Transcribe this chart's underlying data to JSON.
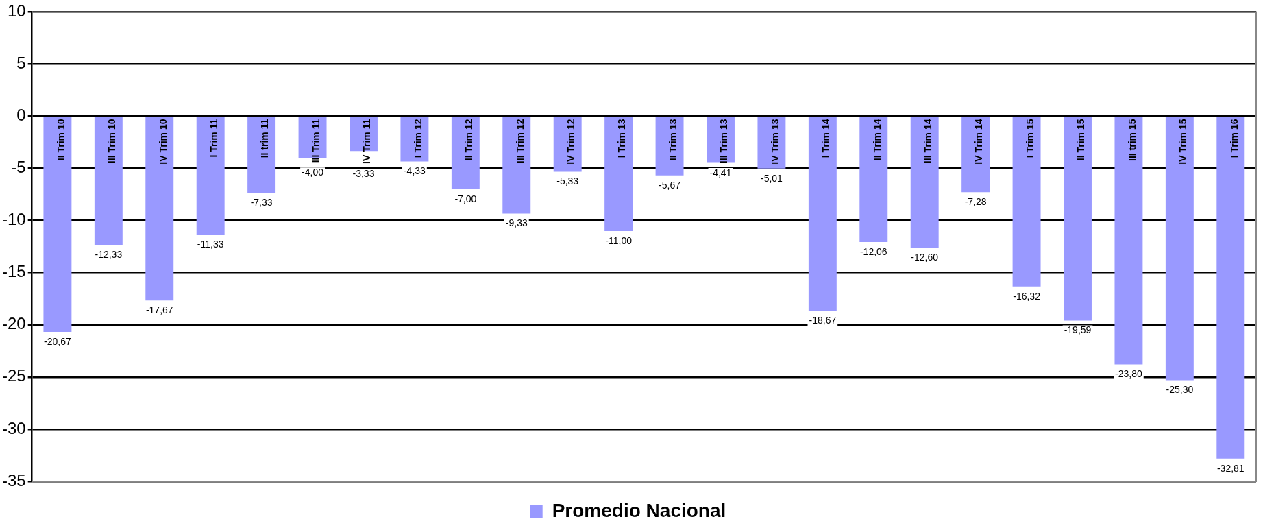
{
  "chart_data": {
    "type": "bar",
    "categories": [
      "II Trim 10",
      "III Trim 10",
      "IV Trim 10",
      "I Trim 11",
      "II trim 11",
      "III Trim 11",
      "IV Trim 11",
      "I Trim 12",
      "II Trim 12",
      "III Trim 12",
      "IV Trim 12",
      "I Trim 13",
      "II Trim 13",
      "III Trim 13",
      "IV Trim 13",
      "I Trim 14",
      "II Trim 14",
      "III Trim 14",
      "IV Trim 14",
      "I Trim 15",
      "II Trim 15",
      "III trim 15",
      "IV Trim 15",
      "I Trim 16"
    ],
    "series": [
      {
        "name": "Promedio Nacional",
        "color": "#9999ff",
        "values": [
          -20.67,
          -12.33,
          -17.67,
          -11.33,
          -7.33,
          -4.0,
          -3.33,
          -4.33,
          -7.0,
          -9.33,
          -5.33,
          -11.0,
          -5.67,
          -4.41,
          -5.01,
          -18.67,
          -12.06,
          -12.6,
          -7.28,
          -16.32,
          -19.59,
          -23.8,
          -25.3,
          -32.81
        ],
        "value_labels": [
          "-20,67",
          "-12,33",
          "-17,67",
          "-11,33",
          "-7,33",
          "-4,00",
          "-3,33",
          "-4,33",
          "-7,00",
          "-9,33",
          "-5,33",
          "-11,00",
          "-5,67",
          "-4,41",
          "-5,01",
          "-18,67",
          "-12,06",
          "-12,60",
          "-7,28",
          "-16,32",
          "-19,59",
          "-23,80",
          "-25,30",
          "-32,81"
        ]
      }
    ],
    "ylim": [
      -35,
      10
    ],
    "yticks": [
      -35,
      -30,
      -25,
      -20,
      -15,
      -10,
      -5,
      0,
      5,
      10
    ],
    "grid": "y",
    "legend": "bottom"
  }
}
